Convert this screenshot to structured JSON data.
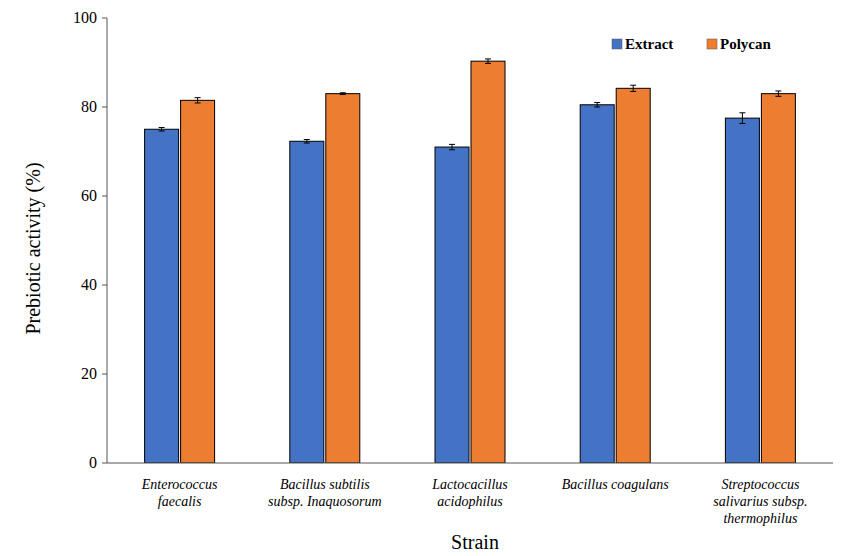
{
  "chart_data": {
    "type": "bar",
    "x_label": "Strain",
    "y_label": "Prebiotic activity (%)",
    "categories": [
      "Enterococcus\nfaecalis",
      "Bacillus subtilis\nsubsp. Inaquosorum",
      "Lactocacillus\nacidophilus",
      "Bacillus coagulans",
      "Streptococcus\nsalivarius subsp.\nthermophilus"
    ],
    "series": [
      {
        "name": "Extract",
        "color": "#4472c4",
        "values": [
          75.0,
          72.3,
          71.0,
          80.5,
          77.5
        ],
        "errors": [
          0.4,
          0.4,
          0.6,
          0.5,
          1.2
        ]
      },
      {
        "name": "Polycan",
        "color": "#ed7d31",
        "values": [
          81.5,
          83.0,
          90.3,
          84.2,
          83.0
        ],
        "errors": [
          0.6,
          0.2,
          0.5,
          0.7,
          0.6
        ]
      }
    ],
    "ylim": [
      0,
      100
    ],
    "yticks": [
      0,
      20,
      40,
      60,
      80,
      100
    ],
    "grid": false,
    "legend": "upper right"
  }
}
